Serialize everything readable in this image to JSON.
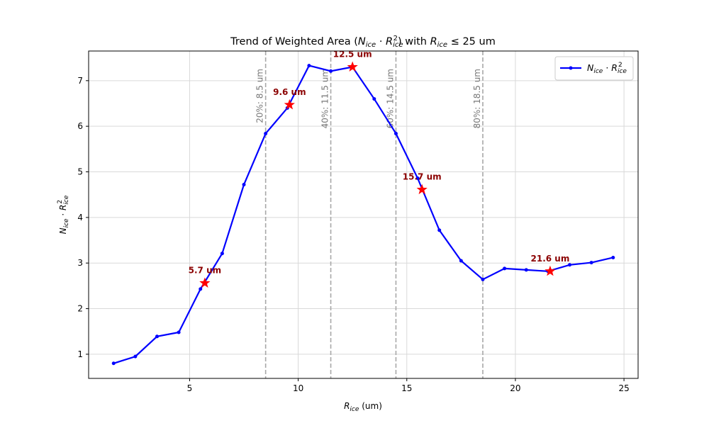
{
  "chart_data": {
    "type": "line",
    "title_prefix": "Trend of Weighted Area (",
    "title_mid": ") with ",
    "title_suffix": " ≤ 25 um",
    "xlabel_suffix": " (um)",
    "xlim": [
      0.35,
      25.65
    ],
    "ylim": [
      0.47,
      7.65
    ],
    "xticks": [
      5,
      10,
      15,
      20,
      25
    ],
    "yticks": [
      1,
      2,
      3,
      4,
      5,
      6,
      7
    ],
    "grid": true,
    "legend_placement": "top-right",
    "series": [
      {
        "name": "N_ice · R_ice^2",
        "color": "#0000ff",
        "x": [
          1.5,
          2.5,
          3.5,
          4.5,
          5.5,
          6.5,
          7.5,
          8.5,
          9.5,
          10.5,
          11.5,
          12.5,
          13.5,
          14.5,
          15.5,
          16.5,
          17.5,
          18.5,
          19.5,
          20.5,
          21.5,
          22.5,
          23.5,
          24.5
        ],
        "y": [
          0.8,
          0.95,
          1.39,
          1.48,
          2.43,
          3.21,
          4.72,
          5.84,
          6.4,
          7.33,
          7.21,
          7.3,
          6.6,
          5.84,
          4.86,
          3.72,
          3.05,
          2.64,
          2.88,
          2.85,
          2.82,
          2.96,
          3.01,
          3.12
        ]
      }
    ],
    "markers": [
      {
        "x": 5.7,
        "y": 2.56,
        "label": "5.7 um"
      },
      {
        "x": 9.6,
        "y": 6.47,
        "label": "9.6 um"
      },
      {
        "x": 12.5,
        "y": 7.3,
        "label": "12.5 um"
      },
      {
        "x": 15.7,
        "y": 4.61,
        "label": "15.7 um"
      },
      {
        "x": 21.6,
        "y": 2.82,
        "label": "21.6 um"
      }
    ],
    "marker_color": "#ff0000",
    "marker_label_color": "#8b0000",
    "vlines": [
      {
        "x": 8.5,
        "label": "20%: 8.5 um"
      },
      {
        "x": 11.5,
        "label": "40%: 11.5 um"
      },
      {
        "x": 14.5,
        "label": "60%: 14.5 um"
      },
      {
        "x": 18.5,
        "label": "80%: 18.5 um"
      }
    ]
  }
}
